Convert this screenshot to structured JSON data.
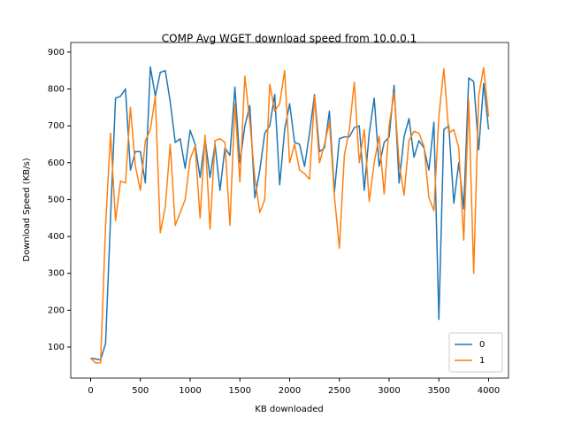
{
  "chart_data": {
    "type": "line",
    "title": "COMP Avg WGET download speed from 10.0.0.1",
    "x_label": "KB downloaded",
    "y_label": "Download Speed (KB/s)",
    "x": [
      0,
      50,
      100,
      150,
      200,
      250,
      300,
      350,
      400,
      450,
      500,
      550,
      600,
      650,
      700,
      750,
      800,
      850,
      900,
      950,
      1000,
      1050,
      1100,
      1150,
      1200,
      1250,
      1300,
      1350,
      1400,
      1450,
      1500,
      1550,
      1600,
      1650,
      1700,
      1750,
      1800,
      1850,
      1900,
      1950,
      2000,
      2050,
      2100,
      2150,
      2200,
      2250,
      2300,
      2350,
      2400,
      2450,
      2500,
      2550,
      2600,
      2650,
      2700,
      2750,
      2800,
      2850,
      2900,
      2950,
      3000,
      3050,
      3100,
      3150,
      3200,
      3250,
      3300,
      3350,
      3400,
      3450,
      3500,
      3550,
      3600,
      3650,
      3700,
      3750,
      3800,
      3850,
      3900,
      3950,
      4000
    ],
    "series": [
      {
        "name": "0",
        "color": "#1f77b4",
        "values": [
          70,
          68,
          65,
          110,
          450,
          775,
          780,
          800,
          580,
          630,
          630,
          545,
          860,
          780,
          845,
          850,
          765,
          655,
          665,
          585,
          688,
          650,
          560,
          665,
          560,
          650,
          525,
          640,
          620,
          805,
          600,
          700,
          755,
          505,
          580,
          680,
          700,
          785,
          540,
          690,
          760,
          655,
          650,
          590,
          680,
          785,
          630,
          640,
          740,
          520,
          665,
          670,
          670,
          695,
          700,
          525,
          680,
          775,
          590,
          655,
          670,
          810,
          545,
          670,
          720,
          615,
          660,
          640,
          580,
          710,
          175,
          690,
          700,
          490,
          600,
          475,
          830,
          820,
          635,
          815,
          690
        ]
      },
      {
        "name": "1",
        "color": "#ff7f0e",
        "values": [
          70,
          57,
          57,
          430,
          680,
          443,
          550,
          545,
          750,
          590,
          525,
          660,
          690,
          780,
          410,
          480,
          650,
          430,
          465,
          500,
          610,
          645,
          450,
          675,
          420,
          660,
          665,
          655,
          430,
          760,
          548,
          835,
          710,
          560,
          465,
          500,
          813,
          740,
          760,
          850,
          600,
          650,
          580,
          570,
          555,
          780,
          600,
          650,
          710,
          510,
          368,
          620,
          690,
          818,
          600,
          690,
          495,
          600,
          672,
          515,
          700,
          790,
          600,
          512,
          660,
          685,
          680,
          645,
          505,
          470,
          725,
          855,
          680,
          690,
          640,
          390,
          770,
          300,
          780,
          858,
          725
        ]
      }
    ],
    "xlim": [
      -200,
      4200
    ],
    "ylim": [
      16,
      926
    ],
    "xticks": [
      0,
      500,
      1000,
      1500,
      2000,
      2500,
      3000,
      3500,
      4000
    ],
    "yticks": [
      100,
      200,
      300,
      400,
      500,
      600,
      700,
      800,
      900
    ],
    "legend": "lower right"
  }
}
